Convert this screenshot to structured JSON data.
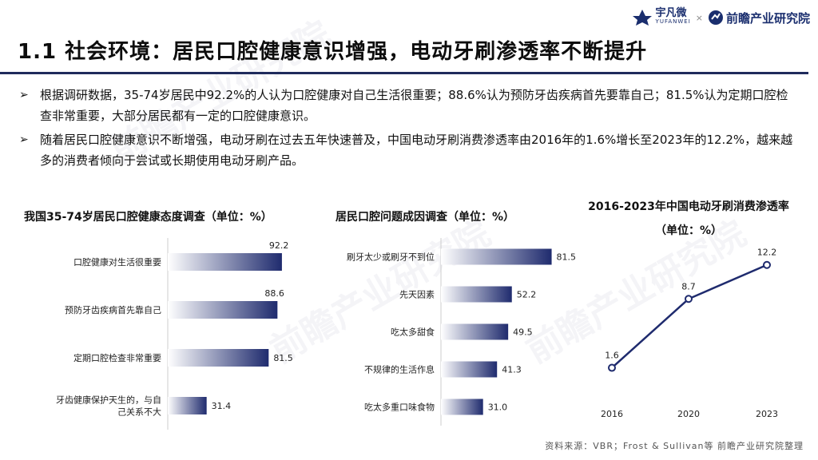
{
  "header": {
    "logo_yufanwei_cn": "宇凡微",
    "logo_yufanwei_en": "YUFANWEI",
    "logo_separator": "×",
    "logo_qianzhan": "前瞻产业研究院"
  },
  "title": "1.1 社会环境：居民口腔健康意识增强，电动牙刷渗透率不断提升",
  "bullets": [
    "根据调研数据，35-74岁居民中92.2%的人认为口腔健康对自己生活很重要；88.6%认为预防牙齿疾病首先要靠自己；81.5%认为定期口腔检查非常重要，大部分居民都有一定的口腔健康意识。",
    "随着居民口腔健康意识不断增强，电动牙刷在过去五年快速普及，中国电动牙刷消费渗透率由2016年的1.6%增长至2023年的12.2%，越来越多的消费者倾向于尝试或长期使用电动牙刷产品。"
  ],
  "source": "资料来源：VBR；Frost & Sullivan等 前瞻产业研究院整理",
  "chart_data": [
    {
      "type": "bar",
      "orientation": "horizontal",
      "title": "我国35-74岁居民口腔健康态度调查（单位：%）",
      "categories": [
        "口腔健康对生活很重要",
        "预防牙齿疾病首先靠自己",
        "定期口腔检查非常重要",
        "牙齿健康保护天生的，与自己关系不大"
      ],
      "values": [
        92.2,
        88.6,
        81.5,
        31.4
      ],
      "labels": [
        "92.2",
        "88.6",
        "81.5",
        "31.4"
      ],
      "xlim": [
        0,
        100
      ],
      "bar_color": "#1f2b6e"
    },
    {
      "type": "bar",
      "orientation": "horizontal",
      "title": "居民口腔问题成因调查（单位：%）",
      "categories": [
        "刷牙太少或刷牙不到位",
        "先天因素",
        "吃太多甜食",
        "不规律的生活作息",
        "吃太多重口味食物"
      ],
      "values": [
        81.5,
        52.2,
        49.5,
        41.3,
        31.0
      ],
      "labels": [
        "81.5",
        "52.2",
        "49.5",
        "41.3",
        "31.0"
      ],
      "xlim": [
        0,
        100
      ],
      "bar_color": "#1f2b6e"
    },
    {
      "type": "line",
      "title": "2016-2023年中国电动牙刷消费渗透率（单位：%）",
      "x": [
        "2016",
        "2020",
        "2023"
      ],
      "values": [
        1.6,
        8.7,
        12.2
      ],
      "labels": [
        "1.6",
        "8.7",
        "12.2"
      ],
      "ylim": [
        0,
        13
      ],
      "line_color": "#1f2b6e"
    }
  ]
}
